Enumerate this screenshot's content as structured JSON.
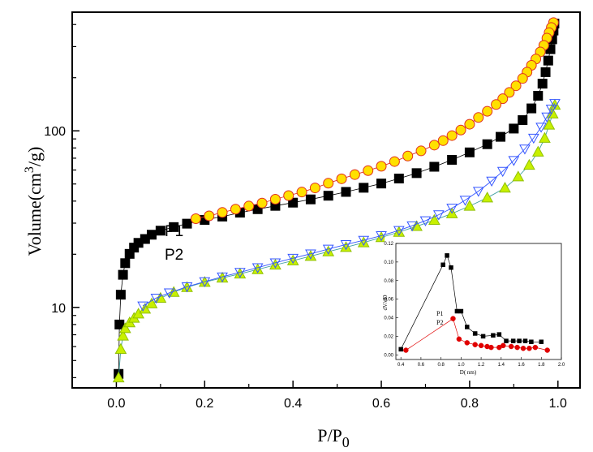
{
  "chart_data": [
    {
      "type": "scatter",
      "scale": {
        "x": "linear",
        "y": "log"
      },
      "xlim": [
        -0.1,
        1.05
      ],
      "ylim": [
        3.5,
        470
      ],
      "x_ticks": [
        "0.0",
        "0.2",
        "0.4",
        "0.6",
        "0.8",
        "1.0"
      ],
      "y_ticks": [
        "10",
        "100"
      ],
      "xlabel": "P/P0",
      "ylabel": "Volume(cm3/g)",
      "legend": [
        "P1",
        "P2"
      ],
      "grid": false,
      "series": [
        {
          "name": "P1",
          "branch": "adsorption",
          "marker": "square",
          "color": "#000000",
          "points": [
            [
              0.005,
              4.2
            ],
            [
              0.007,
              8
            ],
            [
              0.01,
              11.8
            ],
            [
              0.015,
              15.3
            ],
            [
              0.02,
              17.8
            ],
            [
              0.03,
              20.1
            ],
            [
              0.04,
              21.8
            ],
            [
              0.05,
              23.2
            ],
            [
              0.065,
              24.4
            ],
            [
              0.08,
              25.8
            ],
            [
              0.1,
              27.2
            ],
            [
              0.13,
              28.5
            ],
            [
              0.16,
              29.8
            ],
            [
              0.2,
              31.3
            ],
            [
              0.24,
              32.7
            ],
            [
              0.28,
              34.4
            ],
            [
              0.32,
              36
            ],
            [
              0.36,
              37.6
            ],
            [
              0.4,
              39.2
            ],
            [
              0.44,
              40.9
            ],
            [
              0.48,
              42.9
            ],
            [
              0.52,
              45.1
            ],
            [
              0.56,
              47.6
            ],
            [
              0.6,
              50.3
            ],
            [
              0.64,
              53.7
            ],
            [
              0.68,
              57.6
            ],
            [
              0.72,
              62.6
            ],
            [
              0.76,
              68.5
            ],
            [
              0.8,
              75.5
            ],
            [
              0.84,
              84
            ],
            [
              0.87,
              92.5
            ],
            [
              0.9,
              103
            ],
            [
              0.92,
              115
            ],
            [
              0.94,
              134
            ],
            [
              0.955,
              158
            ],
            [
              0.965,
              185
            ],
            [
              0.972,
              215
            ],
            [
              0.978,
              250
            ],
            [
              0.983,
              290
            ],
            [
              0.987,
              330
            ],
            [
              0.99,
              370
            ],
            [
              0.992,
              405
            ]
          ]
        },
        {
          "name": "P1",
          "branch": "desorption",
          "marker": "circle",
          "color": "#ffe000",
          "points": [
            [
              0.99,
              410
            ],
            [
              0.985,
              385
            ],
            [
              0.98,
              360
            ],
            [
              0.975,
              335
            ],
            [
              0.968,
              305
            ],
            [
              0.96,
              280
            ],
            [
              0.95,
              255
            ],
            [
              0.94,
              235
            ],
            [
              0.93,
              215
            ],
            [
              0.92,
              198
            ],
            [
              0.905,
              180
            ],
            [
              0.89,
              165
            ],
            [
              0.875,
              152
            ],
            [
              0.86,
              141
            ],
            [
              0.84,
              129
            ],
            [
              0.82,
              119
            ],
            [
              0.8,
              109
            ],
            [
              0.78,
              101
            ],
            [
              0.76,
              94
            ],
            [
              0.74,
              88
            ],
            [
              0.72,
              83
            ],
            [
              0.69,
              77
            ],
            [
              0.66,
              72
            ],
            [
              0.63,
              67
            ],
            [
              0.6,
              63
            ],
            [
              0.57,
              59.5
            ],
            [
              0.54,
              56.5
            ],
            [
              0.51,
              53.5
            ],
            [
              0.48,
              50.5
            ],
            [
              0.45,
              47.5
            ],
            [
              0.42,
              45
            ],
            [
              0.39,
              43
            ],
            [
              0.36,
              41
            ],
            [
              0.33,
              39
            ],
            [
              0.3,
              37.5
            ],
            [
              0.27,
              36
            ],
            [
              0.24,
              34.5
            ],
            [
              0.21,
              33
            ],
            [
              0.18,
              31.8
            ]
          ]
        },
        {
          "name": "P2",
          "branch": "adsorption",
          "marker": "triangle-up",
          "color": "#c8f000",
          "points": [
            [
              0.005,
              4
            ],
            [
              0.01,
              5.8
            ],
            [
              0.015,
              6.9
            ],
            [
              0.02,
              7.6
            ],
            [
              0.03,
              8.2
            ],
            [
              0.04,
              8.7
            ],
            [
              0.05,
              9.2
            ],
            [
              0.065,
              9.8
            ],
            [
              0.08,
              10.5
            ],
            [
              0.1,
              11.3
            ],
            [
              0.13,
              12.2
            ],
            [
              0.16,
              13
            ],
            [
              0.2,
              13.9
            ],
            [
              0.24,
              14.7
            ],
            [
              0.28,
              15.5
            ],
            [
              0.32,
              16.4
            ],
            [
              0.36,
              17.4
            ],
            [
              0.4,
              18.4
            ],
            [
              0.44,
              19.5
            ],
            [
              0.48,
              20.7
            ],
            [
              0.52,
              21.9
            ],
            [
              0.56,
              23.3
            ],
            [
              0.6,
              24.9
            ],
            [
              0.64,
              26.7
            ],
            [
              0.68,
              28.8
            ],
            [
              0.72,
              31.2
            ],
            [
              0.76,
              34
            ],
            [
              0.8,
              37.5
            ],
            [
              0.84,
              41.8
            ],
            [
              0.88,
              47.5
            ],
            [
              0.91,
              55
            ],
            [
              0.935,
              64
            ],
            [
              0.955,
              76
            ],
            [
              0.97,
              91
            ],
            [
              0.98,
              108
            ],
            [
              0.988,
              125
            ],
            [
              0.993,
              140
            ]
          ]
        },
        {
          "name": "P2",
          "branch": "desorption",
          "marker": "triangle-down",
          "color": "#3355ff",
          "points": [
            [
              0.993,
              143
            ],
            [
              0.985,
              133
            ],
            [
              0.975,
              120
            ],
            [
              0.962,
              105
            ],
            [
              0.945,
              91
            ],
            [
              0.925,
              79
            ],
            [
              0.9,
              68
            ],
            [
              0.875,
              59
            ],
            [
              0.85,
              52
            ],
            [
              0.82,
              45.5
            ],
            [
              0.79,
              40.5
            ],
            [
              0.76,
              36.5
            ],
            [
              0.73,
              33.5
            ],
            [
              0.7,
              31
            ],
            [
              0.67,
              29
            ],
            [
              0.64,
              27.3
            ],
            [
              0.6,
              25.5
            ],
            [
              0.56,
              24
            ],
            [
              0.52,
              22.7
            ],
            [
              0.48,
              21.4
            ],
            [
              0.44,
              20.1
            ],
            [
              0.4,
              19
            ],
            [
              0.36,
              17.9
            ],
            [
              0.32,
              16.8
            ],
            [
              0.28,
              15.8
            ],
            [
              0.24,
              14.9
            ],
            [
              0.2,
              14
            ],
            [
              0.16,
              13.1
            ],
            [
              0.12,
              12.1
            ],
            [
              0.09,
              11.3
            ],
            [
              0.06,
              10.2
            ]
          ]
        }
      ]
    },
    {
      "type": "line",
      "inset": true,
      "xlim": [
        0.35,
        2.0
      ],
      "ylim": [
        -0.005,
        0.12
      ],
      "x_ticks": [
        "0.4",
        "0.6",
        "0.8",
        "1.0",
        "1.2",
        "1.4",
        "1.6",
        "1.8",
        "2.0"
      ],
      "y_ticks": [
        "0.00",
        "0.02",
        "0.04",
        "0.06",
        "0.08",
        "0.10",
        "0.12"
      ],
      "xlabel": "D(",
      "xlabel_unit": "nm)",
      "ylabel": "dV/dD",
      "legend": [
        "P1",
        "P2"
      ],
      "series": [
        {
          "name": "P1",
          "marker": "square",
          "color": "#000000",
          "points": [
            [
              0.4,
              0.006
            ],
            [
              0.82,
              0.097
            ],
            [
              0.86,
              0.107
            ],
            [
              0.9,
              0.094
            ],
            [
              0.96,
              0.047
            ],
            [
              1.0,
              0.047
            ],
            [
              1.06,
              0.03
            ],
            [
              1.14,
              0.023
            ],
            [
              1.22,
              0.02
            ],
            [
              1.32,
              0.021
            ],
            [
              1.38,
              0.022
            ],
            [
              1.45,
              0.015
            ],
            [
              1.52,
              0.015
            ],
            [
              1.58,
              0.015
            ],
            [
              1.64,
              0.015
            ],
            [
              1.7,
              0.014
            ],
            [
              1.8,
              0.014
            ]
          ]
        },
        {
          "name": "P2",
          "marker": "circle",
          "color": "#e00000",
          "points": [
            [
              0.45,
              0.005
            ],
            [
              0.92,
              0.039
            ],
            [
              0.98,
              0.017
            ],
            [
              1.06,
              0.013
            ],
            [
              1.14,
              0.011
            ],
            [
              1.2,
              0.01
            ],
            [
              1.26,
              0.009
            ],
            [
              1.3,
              0.008
            ],
            [
              1.38,
              0.008
            ],
            [
              1.42,
              0.01
            ],
            [
              1.5,
              0.009
            ],
            [
              1.56,
              0.008
            ],
            [
              1.62,
              0.007
            ],
            [
              1.68,
              0.007
            ],
            [
              1.74,
              0.008
            ],
            [
              1.86,
              0.005
            ]
          ]
        }
      ]
    }
  ]
}
